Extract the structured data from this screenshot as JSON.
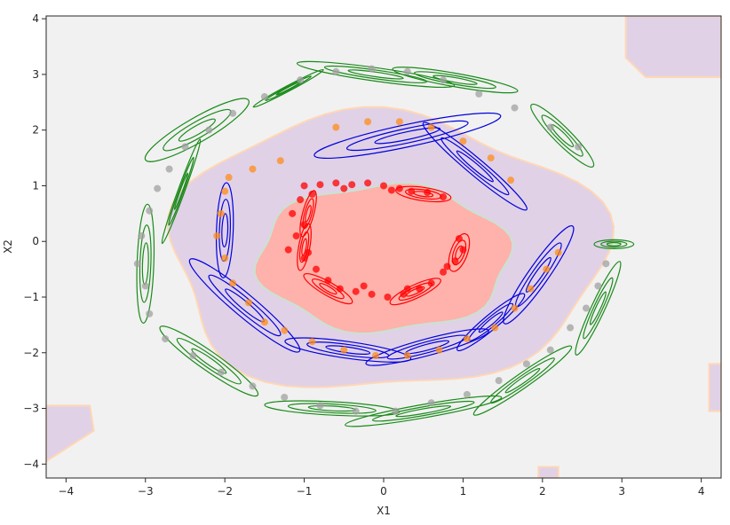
{
  "chart_data": {
    "type": "scatter",
    "title": "",
    "xlabel": "X1",
    "ylabel": "X2",
    "xlim": [
      -4.25,
      4.25
    ],
    "ylim": [
      -4.25,
      4.05
    ],
    "xticks": [
      -4,
      -3,
      -2,
      -1,
      0,
      1,
      2,
      3,
      4
    ],
    "yticks": [
      -4,
      -3,
      -2,
      -1,
      0,
      1,
      2,
      3,
      4
    ],
    "grid": false,
    "legend": "none",
    "background_regions": [
      {
        "class": "outer",
        "color": "#f1f1f1"
      },
      {
        "class": "middle-ring",
        "color": "#e0d1e7",
        "boundary_color": "#ffd7b5"
      },
      {
        "class": "inner",
        "color": "#ffb1ab",
        "boundary_color": "#c9e3d0"
      }
    ],
    "series": [
      {
        "color": "#ff0000",
        "points": [
          [
            -1.0,
            1.0
          ],
          [
            -0.8,
            1.02
          ],
          [
            -0.6,
            1.05
          ],
          [
            -0.4,
            1.02
          ],
          [
            -0.2,
            1.05
          ],
          [
            0.0,
            1.0
          ],
          [
            0.2,
            0.95
          ],
          [
            0.35,
            0.9
          ],
          [
            0.55,
            0.88
          ],
          [
            0.75,
            0.8
          ],
          [
            -1.05,
            0.75
          ],
          [
            -1.15,
            0.5
          ],
          [
            -1.0,
            0.3
          ],
          [
            -1.1,
            0.1
          ],
          [
            -1.2,
            -0.15
          ],
          [
            -1.0,
            -0.3
          ],
          [
            -0.85,
            -0.5
          ],
          [
            -0.7,
            -0.7
          ],
          [
            -0.55,
            -0.85
          ],
          [
            -0.35,
            -0.9
          ],
          [
            -0.15,
            -0.95
          ],
          [
            0.05,
            -1.0
          ],
          [
            0.25,
            -0.95
          ],
          [
            0.45,
            -0.85
          ],
          [
            0.6,
            -0.75
          ],
          [
            0.75,
            -0.55
          ],
          [
            0.9,
            -0.35
          ],
          [
            1.0,
            -0.15
          ],
          [
            0.95,
            0.05
          ],
          [
            -0.9,
            0.85
          ],
          [
            -0.5,
            0.95
          ],
          [
            0.1,
            0.92
          ],
          [
            -0.95,
            -0.2
          ],
          [
            0.8,
            -0.45
          ],
          [
            0.3,
            -0.85
          ],
          [
            -0.25,
            -0.8
          ]
        ]
      },
      {
        "color": "#ff8c1a",
        "points": [
          [
            -1.95,
            1.15
          ],
          [
            -1.65,
            1.3
          ],
          [
            -1.3,
            1.45
          ],
          [
            -2.0,
            0.9
          ],
          [
            -2.05,
            0.5
          ],
          [
            -2.1,
            0.1
          ],
          [
            -2.0,
            -0.3
          ],
          [
            -1.9,
            -0.75
          ],
          [
            -1.7,
            -1.1
          ],
          [
            -1.5,
            -1.45
          ],
          [
            -1.25,
            -1.6
          ],
          [
            -0.9,
            -1.8
          ],
          [
            -0.5,
            -1.95
          ],
          [
            -0.1,
            -2.05
          ],
          [
            0.3,
            -2.05
          ],
          [
            0.7,
            -1.95
          ],
          [
            1.05,
            -1.75
          ],
          [
            1.4,
            -1.55
          ],
          [
            1.65,
            -1.2
          ],
          [
            1.85,
            -0.85
          ],
          [
            2.05,
            -0.5
          ],
          [
            2.2,
            -0.2
          ],
          [
            -0.6,
            2.05
          ],
          [
            -0.2,
            2.15
          ],
          [
            0.2,
            2.15
          ],
          [
            0.6,
            2.05
          ],
          [
            1.0,
            1.8
          ],
          [
            1.35,
            1.5
          ],
          [
            1.6,
            1.1
          ]
        ]
      },
      {
        "color": "#a0a0a0",
        "points": [
          [
            -3.0,
            -0.8
          ],
          [
            -3.1,
            -0.4
          ],
          [
            -3.05,
            0.1
          ],
          [
            -2.95,
            0.55
          ],
          [
            -2.85,
            0.95
          ],
          [
            -2.7,
            1.3
          ],
          [
            -2.5,
            1.7
          ],
          [
            -2.2,
            2.0
          ],
          [
            -1.9,
            2.3
          ],
          [
            -1.5,
            2.6
          ],
          [
            -1.05,
            2.9
          ],
          [
            -0.6,
            3.05
          ],
          [
            -0.15,
            3.1
          ],
          [
            0.3,
            3.05
          ],
          [
            0.75,
            2.9
          ],
          [
            1.2,
            2.65
          ],
          [
            1.65,
            2.4
          ],
          [
            2.1,
            2.05
          ],
          [
            2.45,
            1.7
          ],
          [
            2.8,
            -0.4
          ],
          [
            2.7,
            -0.8
          ],
          [
            2.55,
            -1.2
          ],
          [
            2.35,
            -1.55
          ],
          [
            2.1,
            -1.95
          ],
          [
            1.8,
            -2.2
          ],
          [
            1.45,
            -2.5
          ],
          [
            1.05,
            -2.75
          ],
          [
            0.6,
            -2.9
          ],
          [
            0.15,
            -3.05
          ],
          [
            -0.35,
            -3.05
          ],
          [
            -0.8,
            -2.95
          ],
          [
            -1.25,
            -2.8
          ],
          [
            -1.65,
            -2.6
          ],
          [
            -2.05,
            -2.35
          ],
          [
            -2.4,
            -2.05
          ],
          [
            -2.75,
            -1.75
          ],
          [
            -2.95,
            -1.3
          ]
        ]
      }
    ]
  }
}
